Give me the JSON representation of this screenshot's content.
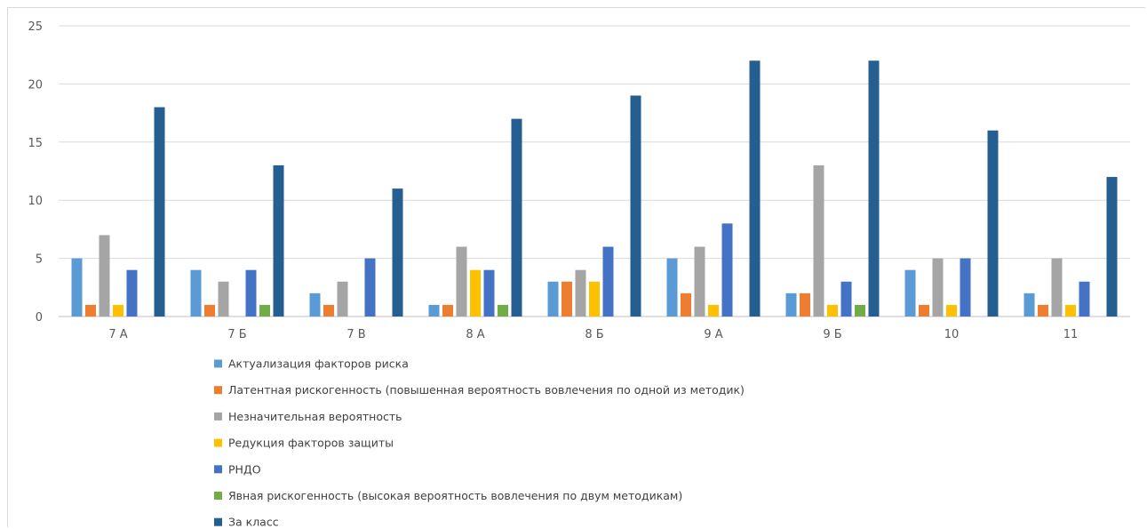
{
  "chart_data": {
    "type": "bar",
    "categories": [
      "7 А",
      "7 Б",
      "7 В",
      "8 А",
      "8 Б",
      "9 А",
      "9 Б",
      "10",
      "11"
    ],
    "series": [
      {
        "name": "Актуализация факторов риска",
        "color": "#5b9bd5",
        "values": [
          5,
          4,
          2,
          1,
          3,
          5,
          2,
          4,
          2
        ]
      },
      {
        "name": "Латентная рискогенность (повышенная вероятность вовлечения по одной из методик)",
        "color": "#ed7d31",
        "values": [
          1,
          1,
          1,
          1,
          3,
          2,
          2,
          1,
          1
        ]
      },
      {
        "name": "Незначительная вероятность",
        "color": "#a5a5a5",
        "values": [
          7,
          3,
          3,
          6,
          4,
          6,
          13,
          5,
          5
        ]
      },
      {
        "name": "Редукция факторов защиты",
        "color": "#ffc000",
        "values": [
          1,
          0,
          0,
          4,
          3,
          1,
          1,
          1,
          1
        ]
      },
      {
        "name": "РНДО",
        "color": "#4472c4",
        "values": [
          4,
          4,
          5,
          4,
          6,
          8,
          3,
          5,
          3
        ]
      },
      {
        "name": "Явная рискогенность (высокая вероятность вовлечения по двум методикам)",
        "color": "#70ad47",
        "values": [
          0,
          1,
          0,
          1,
          0,
          0,
          1,
          0,
          0
        ]
      },
      {
        "name": "За класс",
        "color": "#255e91",
        "values": [
          18,
          13,
          11,
          17,
          19,
          22,
          22,
          16,
          12
        ]
      }
    ],
    "yticks": [
      0,
      5,
      10,
      15,
      20,
      25
    ],
    "ylim": [
      0,
      25
    ],
    "grid": true,
    "legend_position": "bottom"
  }
}
